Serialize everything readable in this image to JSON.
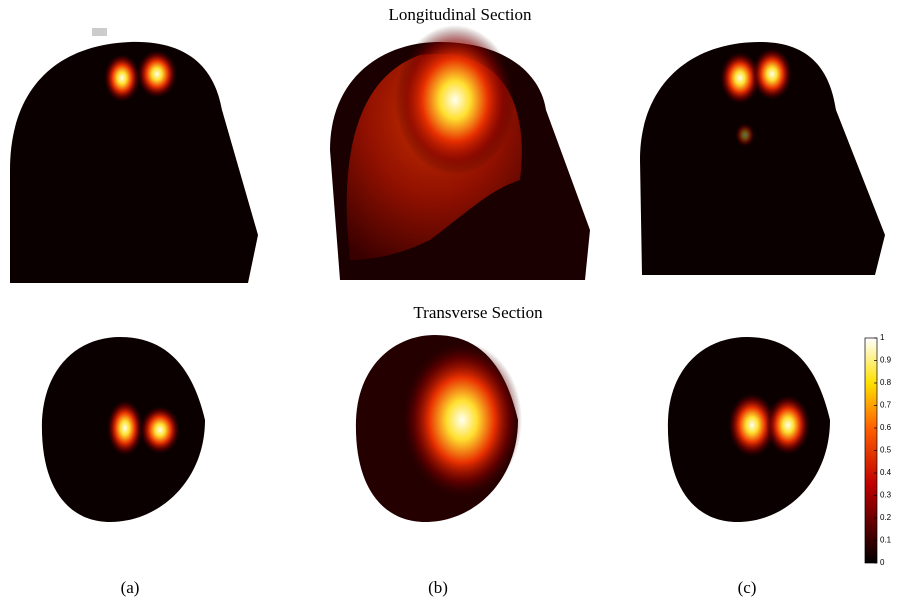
{
  "titles": [
    "Longitudinal Section",
    "Transverse Section"
  ],
  "panel_labels": [
    "(a)",
    "(b)",
    "(c)"
  ],
  "colorbar": {
    "lim": [
      0,
      1
    ],
    "ticks": [
      0,
      0.1,
      0.2,
      0.3,
      0.4,
      0.5,
      0.6,
      0.7,
      0.8,
      0.9,
      1
    ]
  }
}
